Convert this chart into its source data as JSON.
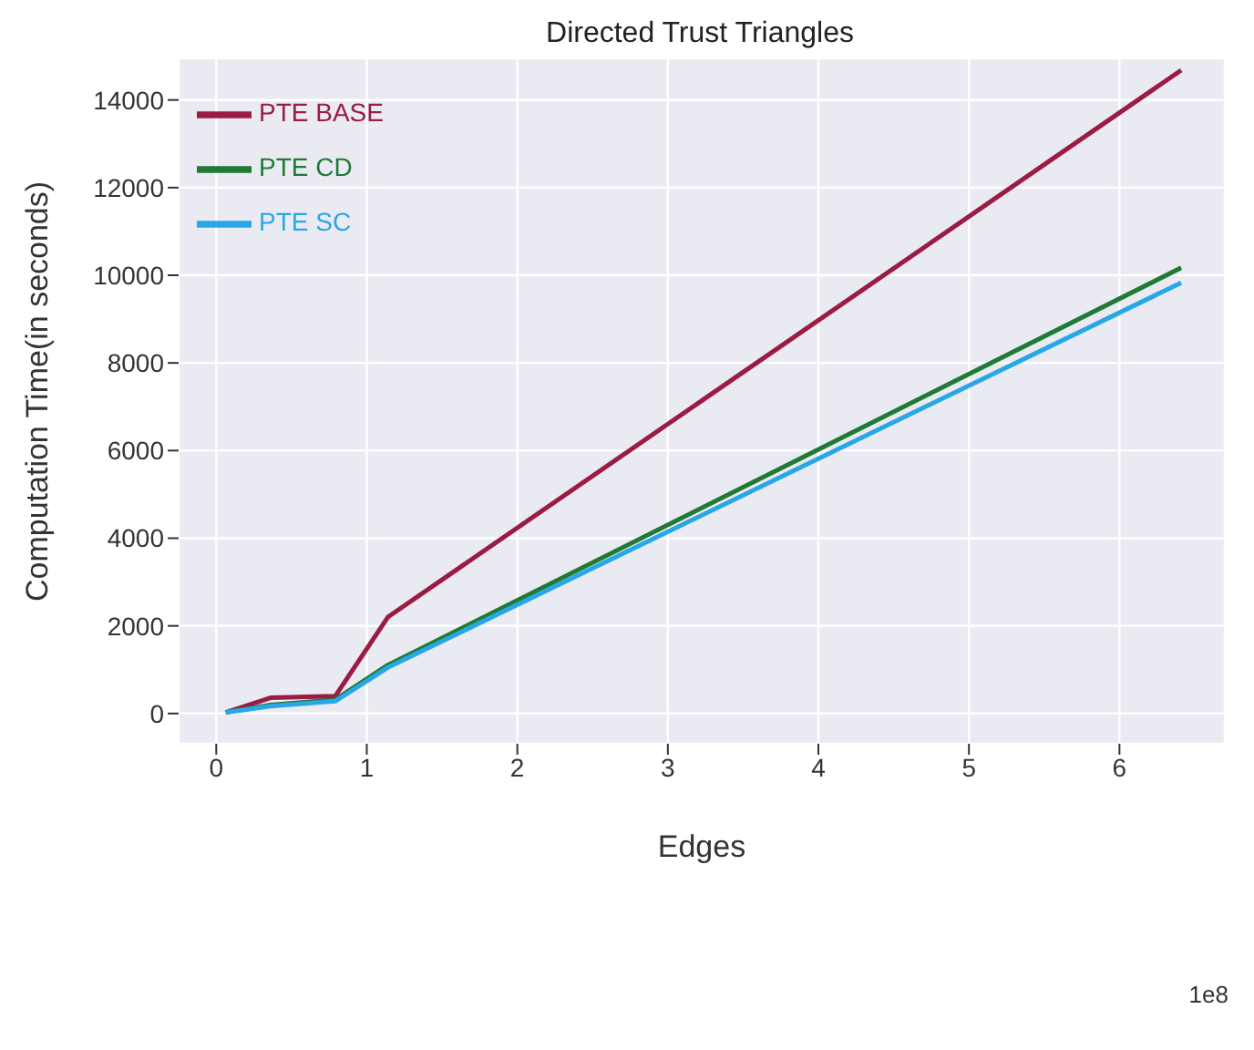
{
  "chart_data": {
    "type": "line",
    "title": "Directed Trust Triangles",
    "xlabel": "Edges",
    "ylabel": "Computation Time(in seconds)",
    "annotations": [
      "1e8"
    ],
    "x": [
      0.063,
      0.36,
      0.79,
      1.14,
      6.41
    ],
    "series": [
      {
        "name": "PTE BASE",
        "color": "#9b1b42",
        "values": [
          25,
          360,
          395,
          2200,
          14680
        ]
      },
      {
        "name": "PTE CD",
        "color": "#1e7a34",
        "values": [
          25,
          195,
          315,
          1105,
          10170
        ]
      },
      {
        "name": "PTE SC",
        "color": "#28a7e8",
        "values": [
          25,
          170,
          280,
          1050,
          9830
        ]
      }
    ],
    "xlim": [
      -0.25,
      6.7
    ],
    "xticks": [
      0,
      1,
      2,
      3,
      4,
      5,
      6
    ],
    "ylim": [
      -690,
      14950
    ],
    "yticks": [
      0,
      2000,
      4000,
      6000,
      8000,
      10000,
      12000,
      14000
    ],
    "grid": true,
    "legend": "top left",
    "marker": "none",
    "line_style": "solid"
  }
}
